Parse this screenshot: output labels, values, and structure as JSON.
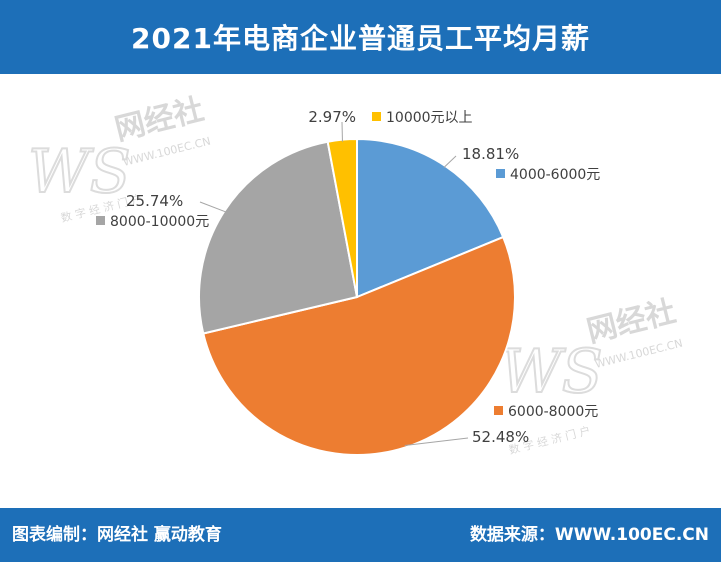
{
  "header": {
    "title": "2021年电商企业普通员工平均月薪"
  },
  "footer": {
    "left": "图表编制：网经社  赢动教育",
    "right": "数据来源：WWW.100EC.CN"
  },
  "watermark": {
    "mark": "WS",
    "name": "网经社",
    "url": "WWW.100EC.CN",
    "tagline": "数 字 经 济 门 户"
  },
  "colors": {
    "header_bg": "#1d6fb8",
    "slice_4000_6000": "#5b9bd5",
    "slice_6000_8000": "#ed7d31",
    "slice_8000_10000": "#a5a5a5",
    "slice_10000_plus": "#ffc000"
  },
  "chart_data": {
    "type": "pie",
    "title": "2021年电商企业普通员工平均月薪",
    "slices": [
      {
        "label": "4000-6000元",
        "value": 18.81,
        "value_label": "18.81%",
        "color": "#5b9bd5"
      },
      {
        "label": "6000-8000元",
        "value": 52.48,
        "value_label": "52.48%",
        "color": "#ed7d31"
      },
      {
        "label": "8000-10000元",
        "value": 25.74,
        "value_label": "25.74%",
        "color": "#a5a5a5"
      },
      {
        "label": "10000元以上",
        "value": 2.97,
        "value_label": "2.97%",
        "color": "#ffc000"
      }
    ],
    "start_angle": "12 o'clock",
    "direction": "clockwise",
    "legend": "labels beside slices"
  }
}
